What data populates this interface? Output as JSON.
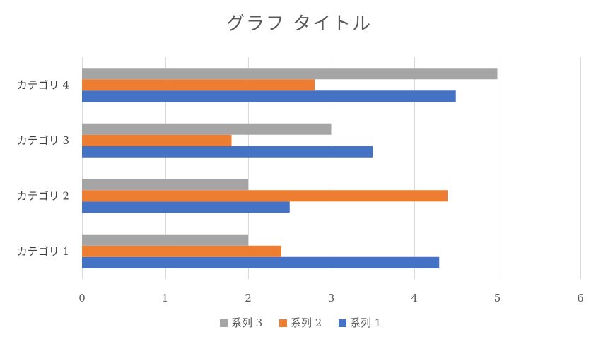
{
  "chart_data": {
    "type": "bar",
    "orientation": "horizontal",
    "title": "グラフ タイトル",
    "categories": [
      "カテゴリ 1",
      "カテゴリ 2",
      "カテゴリ 3",
      "カテゴリ 4"
    ],
    "series": [
      {
        "name": "系列 1",
        "values": [
          4.3,
          2.5,
          3.5,
          4.5
        ],
        "color": "#4472c4"
      },
      {
        "name": "系列 2",
        "values": [
          2.4,
          4.4,
          1.8,
          2.8
        ],
        "color": "#ed7d31"
      },
      {
        "name": "系列 3",
        "values": [
          2.0,
          2.0,
          3.0,
          5.0
        ],
        "color": "#a5a5a5"
      }
    ],
    "xlim": [
      0,
      6
    ],
    "xticks": [
      "0",
      "1",
      "2",
      "3",
      "4",
      "5",
      "6"
    ],
    "grid": true,
    "legend": {
      "position": "bottom",
      "order": [
        "系列 3",
        "系列 2",
        "系列 1"
      ]
    }
  }
}
